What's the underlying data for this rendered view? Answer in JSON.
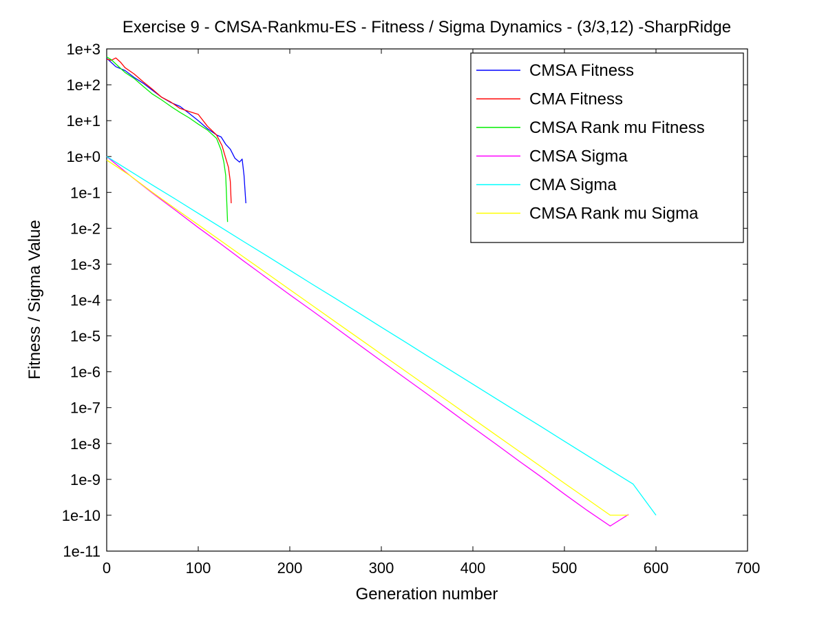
{
  "chart_data": {
    "type": "line",
    "title": "Exercise 9 - CMSA-Rankmu-ES - Fitness / Sigma Dynamics - (3/3,12) -SharpRidge",
    "xlabel": "Generation number",
    "ylabel": "Fitness / Sigma Value",
    "xlim": [
      0,
      700
    ],
    "ylim": [
      1e-11,
      1000
    ],
    "yscale": "log",
    "x_ticks": [
      0,
      100,
      200,
      300,
      400,
      500,
      600,
      700
    ],
    "x_tick_labels": [
      "0",
      "100",
      "200",
      "300",
      "400",
      "500",
      "600",
      "700"
    ],
    "y_ticks": [
      1e-11,
      1e-10,
      1e-09,
      1e-08,
      1e-07,
      1e-06,
      1e-05,
      0.0001,
      0.001,
      0.01,
      0.1,
      1,
      10,
      100,
      1000
    ],
    "y_tick_labels": [
      "1e-11",
      "1e-10",
      "1e-9",
      "1e-8",
      "1e-7",
      "1e-6",
      "1e-5",
      "1e-4",
      "1e-3",
      "1e-2",
      "1e-1",
      "1e+0",
      "1e+1",
      "1e+2",
      "1e+3"
    ],
    "grid": false,
    "legend_position": "top-right",
    "series": [
      {
        "name": "CMSA Fitness",
        "color": "#0000ff",
        "x": [
          0,
          10,
          20,
          30,
          40,
          50,
          60,
          70,
          80,
          90,
          100,
          110,
          120,
          125,
          130,
          135,
          140,
          145,
          148,
          150,
          152
        ],
        "y": [
          550,
          320,
          250,
          160,
          110,
          70,
          45,
          32,
          25,
          16,
          10,
          6,
          4,
          3.5,
          2.2,
          1.6,
          0.9,
          0.7,
          0.85,
          0.3,
          0.05
        ]
      },
      {
        "name": "CMA Fitness",
        "color": "#ff0000",
        "x": [
          0,
          5,
          10,
          15,
          20,
          30,
          40,
          50,
          60,
          70,
          80,
          90,
          100,
          110,
          120,
          126,
          130,
          133,
          135,
          136
        ],
        "y": [
          520,
          480,
          560,
          430,
          300,
          200,
          120,
          75,
          45,
          33,
          22,
          18,
          15,
          7,
          4,
          2,
          0.9,
          0.5,
          0.2,
          0.05
        ]
      },
      {
        "name": "CMSA Rank mu Fitness",
        "color": "#00ee00",
        "x": [
          0,
          5,
          10,
          20,
          30,
          40,
          50,
          60,
          70,
          80,
          90,
          100,
          110,
          120,
          125,
          128,
          130,
          132
        ],
        "y": [
          600,
          500,
          380,
          220,
          150,
          90,
          55,
          38,
          25,
          17,
          12,
          8,
          5.5,
          3.2,
          1.5,
          0.7,
          0.3,
          0.015
        ]
      },
      {
        "name": "CMSA Sigma",
        "color": "#ff00ff",
        "x": [
          0,
          25,
          50,
          75,
          100,
          125,
          150,
          175,
          200,
          225,
          250,
          275,
          300,
          325,
          350,
          375,
          400,
          425,
          450,
          475,
          500,
          525,
          550,
          570
        ],
        "y": [
          1.0,
          0.3,
          0.095,
          0.032,
          0.0105,
          0.0036,
          0.0012,
          0.00041,
          0.00014,
          4.9e-05,
          1.7e-05,
          5.8e-06,
          2e-06,
          6.9e-07,
          2.4e-07,
          8.2e-08,
          2.8e-08,
          9.7e-09,
          3.3e-09,
          1.15e-09,
          3.9e-10,
          1.35e-10,
          5e-11,
          1.05e-10
        ]
      },
      {
        "name": "CMA Sigma",
        "color": "#00ffff",
        "x": [
          0,
          25,
          50,
          75,
          100,
          125,
          150,
          175,
          200,
          225,
          250,
          275,
          300,
          325,
          350,
          375,
          400,
          425,
          450,
          475,
          500,
          525,
          550,
          575,
          600
        ],
        "y": [
          1.0,
          0.4,
          0.16,
          0.065,
          0.026,
          0.0105,
          0.0042,
          0.0017,
          0.00068,
          0.00027,
          0.00011,
          4.4e-05,
          1.75e-05,
          7e-06,
          2.8e-06,
          1.12e-06,
          4.5e-07,
          1.8e-07,
          7.2e-08,
          2.9e-08,
          1.15e-08,
          4.6e-09,
          1.84e-09,
          7.4e-10,
          1e-10
        ]
      },
      {
        "name": "CMSA Rank mu Sigma",
        "color": "#ffff00",
        "x": [
          0,
          25,
          50,
          75,
          100,
          125,
          150,
          175,
          200,
          225,
          250,
          275,
          300,
          325,
          350,
          375,
          400,
          425,
          450,
          475,
          500,
          525,
          550,
          570
        ],
        "y": [
          0.8,
          0.3,
          0.1,
          0.035,
          0.0125,
          0.0044,
          0.00155,
          0.00055,
          0.000195,
          6.9e-05,
          2.45e-05,
          8.7e-06,
          3.1e-06,
          1.1e-06,
          3.9e-07,
          1.38e-07,
          4.9e-08,
          1.74e-08,
          6.2e-09,
          2.2e-09,
          7.8e-10,
          2.8e-10,
          1e-10,
          1e-10
        ]
      }
    ]
  }
}
